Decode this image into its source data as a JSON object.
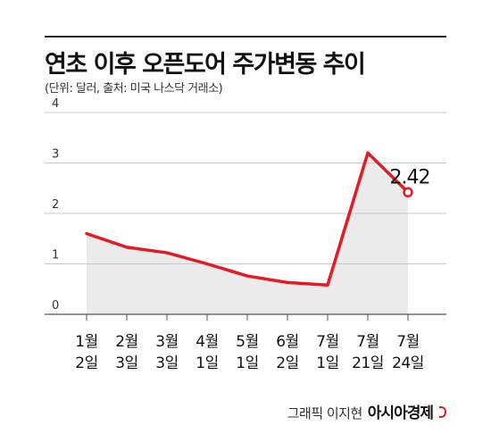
{
  "title": "연초 이후 오픈도어 주가변동 추이",
  "subtitle": "(단위: 달러, 출처: 미국 나스닥 거래소)",
  "credit": {
    "designer": "그래픽 이지현",
    "brand": "아시아경제"
  },
  "colors": {
    "line": "#e31b23",
    "area": "#ebebeb",
    "grid": "#c8c8c8",
    "text": "#111111"
  },
  "chart_data": {
    "type": "area",
    "categories": [
      [
        "1월",
        "2일"
      ],
      [
        "2월",
        "3일"
      ],
      [
        "3월",
        "3일"
      ],
      [
        "4월",
        "1일"
      ],
      [
        "5월",
        "1일"
      ],
      [
        "6월",
        "2일"
      ],
      [
        "7월",
        "1일"
      ],
      [
        "7월",
        "21일"
      ],
      [
        "7월",
        "24일"
      ]
    ],
    "series": [
      {
        "values": [
          1.6,
          1.33,
          1.22,
          1.0,
          0.76,
          0.63,
          0.58,
          3.2,
          2.42
        ]
      }
    ],
    "highlight": {
      "index": 8,
      "label": "2.42"
    },
    "yticks": [
      0,
      1,
      2,
      3,
      4
    ],
    "ylim": [
      0,
      4
    ],
    "grid": true
  }
}
